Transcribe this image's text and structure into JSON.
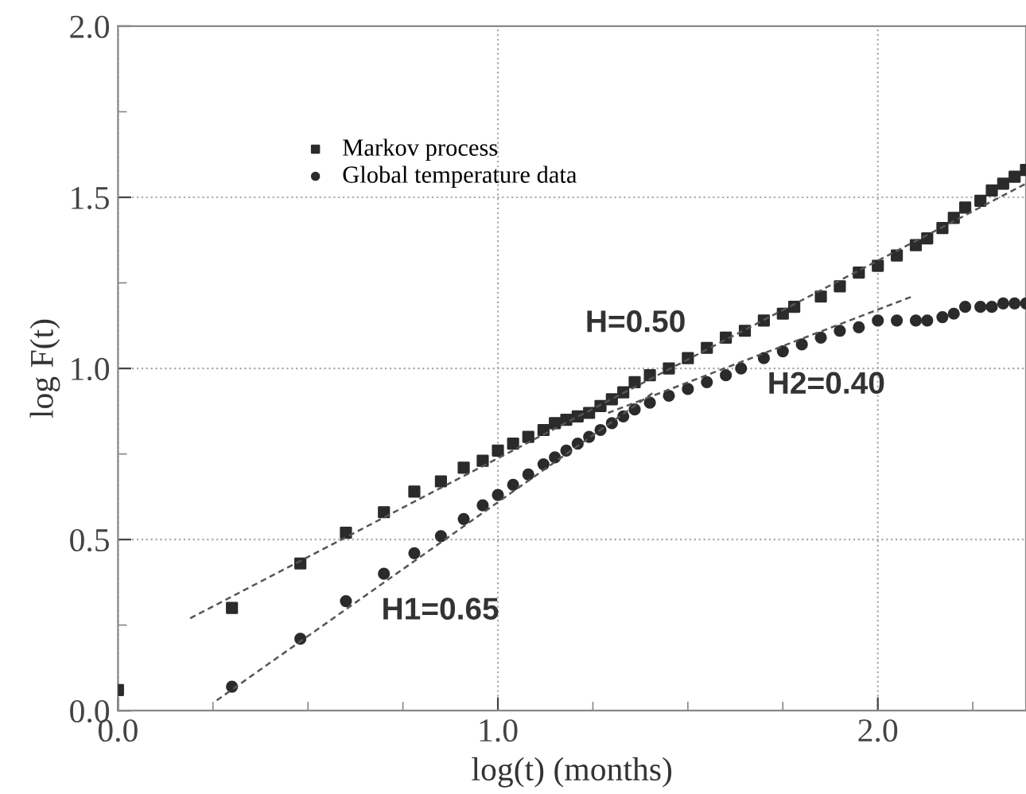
{
  "chart_data": {
    "type": "scatter",
    "xlabel": "log(t) (months)",
    "ylabel": "log F(t)",
    "xlim": [
      0,
      2.39
    ],
    "ylim": [
      0,
      2.0
    ],
    "xticks": [
      {
        "value": 0,
        "label": "0.0"
      },
      {
        "value": 0.25,
        "label": null
      },
      {
        "value": 0.5,
        "label": null
      },
      {
        "value": 0.75,
        "label": null
      },
      {
        "value": 1,
        "label": "1.0"
      },
      {
        "value": 1.25,
        "label": null
      },
      {
        "value": 1.5,
        "label": null
      },
      {
        "value": 1.75,
        "label": null
      },
      {
        "value": 2,
        "label": "2.0"
      },
      {
        "value": 2.25,
        "label": null
      }
    ],
    "yticks": [
      {
        "value": 0,
        "label": "0.0"
      },
      {
        "value": 0.25,
        "label": null
      },
      {
        "value": 0.5,
        "label": "0.5"
      },
      {
        "value": 0.75,
        "label": null
      },
      {
        "value": 1,
        "label": "1.0"
      },
      {
        "value": 1.25,
        "label": null
      },
      {
        "value": 1.5,
        "label": "1.5"
      },
      {
        "value": 1.75,
        "label": null
      },
      {
        "value": 2,
        "label": "2.0"
      }
    ],
    "grid": true,
    "legend": "top left",
    "series": [
      {
        "name": "Markov process",
        "marker": "square",
        "color": "#2b2b2b",
        "x": [
          0.0,
          0.3,
          0.48,
          0.6,
          0.7,
          0.78,
          0.85,
          0.91,
          0.96,
          1.0,
          1.04,
          1.08,
          1.12,
          1.15,
          1.18,
          1.21,
          1.24,
          1.27,
          1.3,
          1.33,
          1.36,
          1.4,
          1.45,
          1.5,
          1.55,
          1.6,
          1.65,
          1.7,
          1.75,
          1.78,
          1.85,
          1.9,
          1.95,
          2.0,
          2.05,
          2.1,
          2.13,
          2.17,
          2.2,
          2.23,
          2.27,
          2.3,
          2.33,
          2.36,
          2.39
        ],
        "values": [
          0.06,
          0.3,
          0.43,
          0.52,
          0.58,
          0.64,
          0.67,
          0.71,
          0.73,
          0.76,
          0.78,
          0.8,
          0.82,
          0.84,
          0.85,
          0.86,
          0.87,
          0.89,
          0.91,
          0.93,
          0.96,
          0.98,
          1.0,
          1.03,
          1.06,
          1.09,
          1.11,
          1.14,
          1.16,
          1.18,
          1.21,
          1.24,
          1.28,
          1.3,
          1.33,
          1.36,
          1.38,
          1.41,
          1.44,
          1.47,
          1.49,
          1.52,
          1.54,
          1.56,
          1.58
        ]
      },
      {
        "name": "Global temperature data",
        "marker": "circle",
        "color": "#2b2b2b",
        "x": [
          0.3,
          0.48,
          0.6,
          0.7,
          0.78,
          0.85,
          0.91,
          0.96,
          1.0,
          1.04,
          1.08,
          1.12,
          1.15,
          1.18,
          1.21,
          1.24,
          1.27,
          1.3,
          1.33,
          1.36,
          1.4,
          1.45,
          1.5,
          1.55,
          1.6,
          1.64,
          1.7,
          1.75,
          1.8,
          1.85,
          1.9,
          1.95,
          2.0,
          2.05,
          2.1,
          2.13,
          2.17,
          2.2,
          2.23,
          2.27,
          2.3,
          2.33,
          2.36,
          2.39
        ],
        "values": [
          0.07,
          0.21,
          0.32,
          0.4,
          0.46,
          0.51,
          0.56,
          0.6,
          0.63,
          0.66,
          0.69,
          0.72,
          0.74,
          0.76,
          0.78,
          0.8,
          0.82,
          0.84,
          0.86,
          0.88,
          0.9,
          0.92,
          0.94,
          0.96,
          0.98,
          1.0,
          1.03,
          1.05,
          1.07,
          1.09,
          1.11,
          1.12,
          1.14,
          1.14,
          1.14,
          1.14,
          1.15,
          1.16,
          1.18,
          1.18,
          1.18,
          1.19,
          1.19,
          1.19
        ]
      },
      {
        "type": "line",
        "line_style": "dashed",
        "color": "#555555",
        "x": [
          0.19,
          2.39
        ],
        "values": [
          0.27,
          1.54
        ]
      },
      {
        "type": "line",
        "line_style": "dashed",
        "color": "#555555",
        "x": [
          0.26,
          1.41
        ],
        "values": [
          0.03,
          0.93
        ]
      },
      {
        "type": "line",
        "line_style": "dashed",
        "color": "#555555",
        "x": [
          1.29,
          2.09
        ],
        "values": [
          0.87,
          1.21
        ]
      }
    ],
    "annotations": [
      "H=0.50",
      "H2=0.40",
      "H1=0.65"
    ]
  }
}
